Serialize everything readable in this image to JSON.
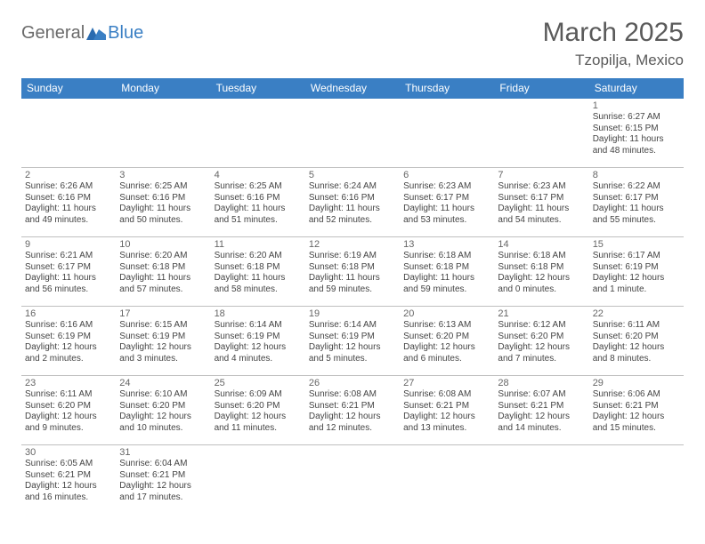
{
  "logo": {
    "part1": "General",
    "part2": "Blue"
  },
  "title": "March 2025",
  "location": "Tzopilja, Mexico",
  "colors": {
    "header_bg": "#3a7fc4",
    "header_text": "#ffffff",
    "row_border": "#3a7fc4",
    "logo_gray": "#6a6a6a",
    "logo_blue": "#3a7fc4"
  },
  "weekdays": [
    "Sunday",
    "Monday",
    "Tuesday",
    "Wednesday",
    "Thursday",
    "Friday",
    "Saturday"
  ],
  "weeks": [
    [
      null,
      null,
      null,
      null,
      null,
      null,
      {
        "d": "1",
        "sr": "Sunrise: 6:27 AM",
        "ss": "Sunset: 6:15 PM",
        "dl": "Daylight: 11 hours and 48 minutes."
      }
    ],
    [
      {
        "d": "2",
        "sr": "Sunrise: 6:26 AM",
        "ss": "Sunset: 6:16 PM",
        "dl": "Daylight: 11 hours and 49 minutes."
      },
      {
        "d": "3",
        "sr": "Sunrise: 6:25 AM",
        "ss": "Sunset: 6:16 PM",
        "dl": "Daylight: 11 hours and 50 minutes."
      },
      {
        "d": "4",
        "sr": "Sunrise: 6:25 AM",
        "ss": "Sunset: 6:16 PM",
        "dl": "Daylight: 11 hours and 51 minutes."
      },
      {
        "d": "5",
        "sr": "Sunrise: 6:24 AM",
        "ss": "Sunset: 6:16 PM",
        "dl": "Daylight: 11 hours and 52 minutes."
      },
      {
        "d": "6",
        "sr": "Sunrise: 6:23 AM",
        "ss": "Sunset: 6:17 PM",
        "dl": "Daylight: 11 hours and 53 minutes."
      },
      {
        "d": "7",
        "sr": "Sunrise: 6:23 AM",
        "ss": "Sunset: 6:17 PM",
        "dl": "Daylight: 11 hours and 54 minutes."
      },
      {
        "d": "8",
        "sr": "Sunrise: 6:22 AM",
        "ss": "Sunset: 6:17 PM",
        "dl": "Daylight: 11 hours and 55 minutes."
      }
    ],
    [
      {
        "d": "9",
        "sr": "Sunrise: 6:21 AM",
        "ss": "Sunset: 6:17 PM",
        "dl": "Daylight: 11 hours and 56 minutes."
      },
      {
        "d": "10",
        "sr": "Sunrise: 6:20 AM",
        "ss": "Sunset: 6:18 PM",
        "dl": "Daylight: 11 hours and 57 minutes."
      },
      {
        "d": "11",
        "sr": "Sunrise: 6:20 AM",
        "ss": "Sunset: 6:18 PM",
        "dl": "Daylight: 11 hours and 58 minutes."
      },
      {
        "d": "12",
        "sr": "Sunrise: 6:19 AM",
        "ss": "Sunset: 6:18 PM",
        "dl": "Daylight: 11 hours and 59 minutes."
      },
      {
        "d": "13",
        "sr": "Sunrise: 6:18 AM",
        "ss": "Sunset: 6:18 PM",
        "dl": "Daylight: 11 hours and 59 minutes."
      },
      {
        "d": "14",
        "sr": "Sunrise: 6:18 AM",
        "ss": "Sunset: 6:18 PM",
        "dl": "Daylight: 12 hours and 0 minutes."
      },
      {
        "d": "15",
        "sr": "Sunrise: 6:17 AM",
        "ss": "Sunset: 6:19 PM",
        "dl": "Daylight: 12 hours and 1 minute."
      }
    ],
    [
      {
        "d": "16",
        "sr": "Sunrise: 6:16 AM",
        "ss": "Sunset: 6:19 PM",
        "dl": "Daylight: 12 hours and 2 minutes."
      },
      {
        "d": "17",
        "sr": "Sunrise: 6:15 AM",
        "ss": "Sunset: 6:19 PM",
        "dl": "Daylight: 12 hours and 3 minutes."
      },
      {
        "d": "18",
        "sr": "Sunrise: 6:14 AM",
        "ss": "Sunset: 6:19 PM",
        "dl": "Daylight: 12 hours and 4 minutes."
      },
      {
        "d": "19",
        "sr": "Sunrise: 6:14 AM",
        "ss": "Sunset: 6:19 PM",
        "dl": "Daylight: 12 hours and 5 minutes."
      },
      {
        "d": "20",
        "sr": "Sunrise: 6:13 AM",
        "ss": "Sunset: 6:20 PM",
        "dl": "Daylight: 12 hours and 6 minutes."
      },
      {
        "d": "21",
        "sr": "Sunrise: 6:12 AM",
        "ss": "Sunset: 6:20 PM",
        "dl": "Daylight: 12 hours and 7 minutes."
      },
      {
        "d": "22",
        "sr": "Sunrise: 6:11 AM",
        "ss": "Sunset: 6:20 PM",
        "dl": "Daylight: 12 hours and 8 minutes."
      }
    ],
    [
      {
        "d": "23",
        "sr": "Sunrise: 6:11 AM",
        "ss": "Sunset: 6:20 PM",
        "dl": "Daylight: 12 hours and 9 minutes."
      },
      {
        "d": "24",
        "sr": "Sunrise: 6:10 AM",
        "ss": "Sunset: 6:20 PM",
        "dl": "Daylight: 12 hours and 10 minutes."
      },
      {
        "d": "25",
        "sr": "Sunrise: 6:09 AM",
        "ss": "Sunset: 6:20 PM",
        "dl": "Daylight: 12 hours and 11 minutes."
      },
      {
        "d": "26",
        "sr": "Sunrise: 6:08 AM",
        "ss": "Sunset: 6:21 PM",
        "dl": "Daylight: 12 hours and 12 minutes."
      },
      {
        "d": "27",
        "sr": "Sunrise: 6:08 AM",
        "ss": "Sunset: 6:21 PM",
        "dl": "Daylight: 12 hours and 13 minutes."
      },
      {
        "d": "28",
        "sr": "Sunrise: 6:07 AM",
        "ss": "Sunset: 6:21 PM",
        "dl": "Daylight: 12 hours and 14 minutes."
      },
      {
        "d": "29",
        "sr": "Sunrise: 6:06 AM",
        "ss": "Sunset: 6:21 PM",
        "dl": "Daylight: 12 hours and 15 minutes."
      }
    ],
    [
      {
        "d": "30",
        "sr": "Sunrise: 6:05 AM",
        "ss": "Sunset: 6:21 PM",
        "dl": "Daylight: 12 hours and 16 minutes."
      },
      {
        "d": "31",
        "sr": "Sunrise: 6:04 AM",
        "ss": "Sunset: 6:21 PM",
        "dl": "Daylight: 12 hours and 17 minutes."
      },
      null,
      null,
      null,
      null,
      null
    ]
  ]
}
